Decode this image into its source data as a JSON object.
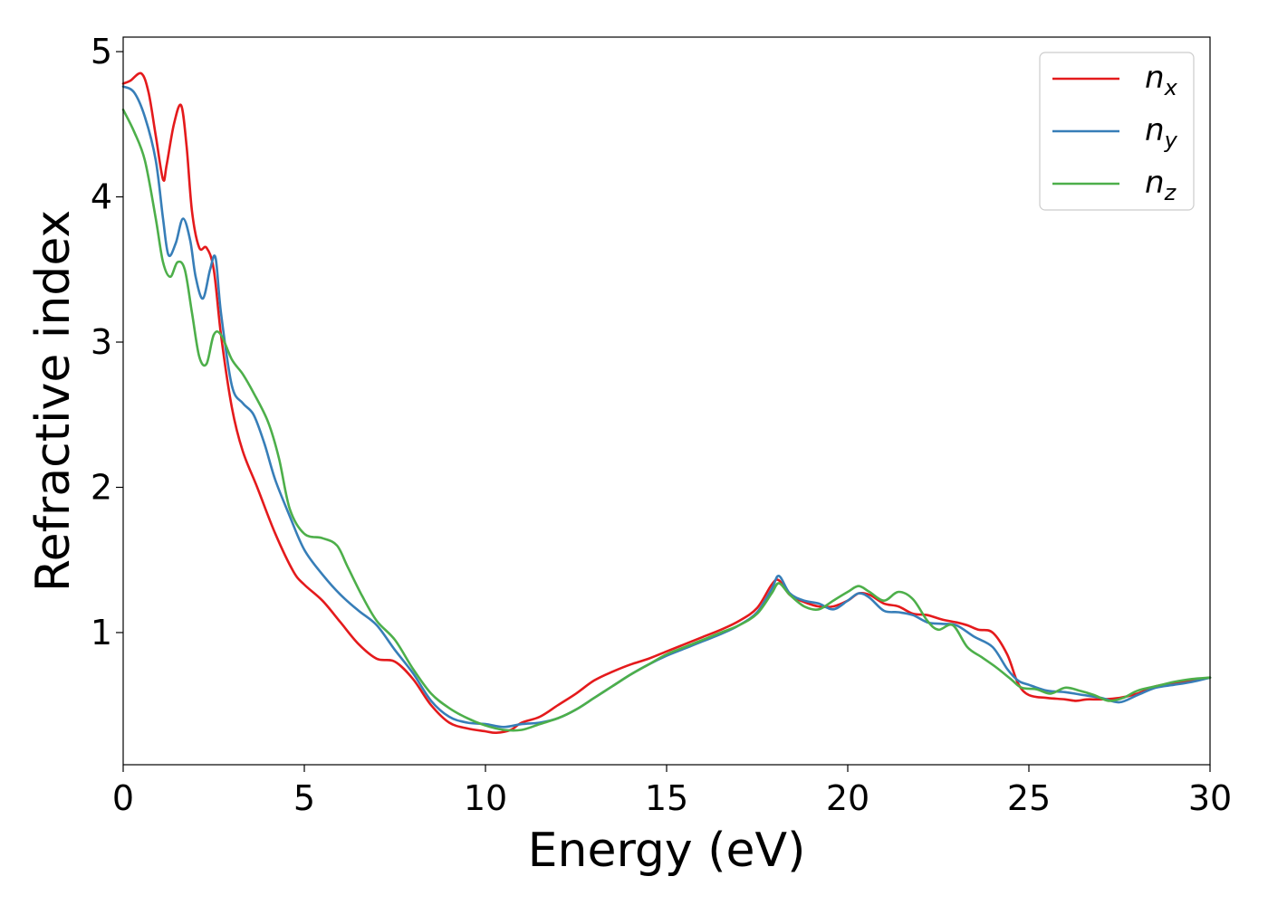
{
  "chart_data": {
    "type": "line",
    "title": "",
    "xlabel": "Energy (eV)",
    "ylabel": "Refractive index",
    "xlim": [
      0,
      30
    ],
    "ylim": [
      0.09,
      5.1
    ],
    "xticks": [
      0,
      5,
      10,
      15,
      20,
      25,
      30
    ],
    "yticks": [
      1,
      2,
      3,
      4,
      5
    ],
    "grid": false,
    "legend_position": "top-right",
    "series": [
      {
        "name": "n",
        "subscript": "x",
        "color": "#e41a1c",
        "x": [
          0,
          0.2,
          0.5,
          0.7,
          0.9,
          1.1,
          1.2,
          1.4,
          1.6,
          1.75,
          1.9,
          2.1,
          2.3,
          2.5,
          2.7,
          3.0,
          3.3,
          3.7,
          4.2,
          4.7,
          5.0,
          5.5,
          6.0,
          6.5,
          7.0,
          7.5,
          8.0,
          8.5,
          9.0,
          9.5,
          10.0,
          10.3,
          10.7,
          11.0,
          11.5,
          12.0,
          12.5,
          13.0,
          13.5,
          14.0,
          14.5,
          15.0,
          15.5,
          16.0,
          16.5,
          17.0,
          17.5,
          17.9,
          18.1,
          18.4,
          18.8,
          19.2,
          19.6,
          20.0,
          20.3,
          20.6,
          21.0,
          21.4,
          21.8,
          22.2,
          22.6,
          23.0,
          23.3,
          23.6,
          24.0,
          24.4,
          24.7,
          25.0,
          25.5,
          26.0,
          26.3,
          26.6,
          27.0,
          27.5,
          28.0,
          28.5,
          29.0,
          29.5,
          30.0
        ],
        "y": [
          4.78,
          4.8,
          4.85,
          4.72,
          4.42,
          4.12,
          4.22,
          4.5,
          4.63,
          4.35,
          3.9,
          3.65,
          3.65,
          3.5,
          3.05,
          2.55,
          2.25,
          2.0,
          1.68,
          1.42,
          1.33,
          1.22,
          1.07,
          0.92,
          0.82,
          0.8,
          0.68,
          0.5,
          0.38,
          0.34,
          0.32,
          0.31,
          0.33,
          0.38,
          0.42,
          0.5,
          0.58,
          0.67,
          0.73,
          0.78,
          0.82,
          0.87,
          0.92,
          0.97,
          1.02,
          1.08,
          1.17,
          1.33,
          1.36,
          1.26,
          1.21,
          1.18,
          1.18,
          1.22,
          1.27,
          1.26,
          1.2,
          1.18,
          1.13,
          1.12,
          1.09,
          1.07,
          1.05,
          1.02,
          1.0,
          0.85,
          0.65,
          0.57,
          0.55,
          0.54,
          0.53,
          0.54,
          0.54,
          0.55,
          0.58,
          0.63,
          0.65,
          0.67,
          0.69
        ]
      },
      {
        "name": "n",
        "subscript": "y",
        "color": "#377eb8",
        "x": [
          0,
          0.3,
          0.6,
          0.9,
          1.1,
          1.25,
          1.45,
          1.65,
          1.85,
          2.0,
          2.2,
          2.4,
          2.55,
          2.7,
          3.0,
          3.3,
          3.6,
          3.9,
          4.2,
          4.6,
          5.0,
          5.5,
          6.0,
          6.5,
          7.0,
          7.5,
          8.0,
          8.5,
          9.0,
          9.5,
          10.0,
          10.5,
          11.0,
          11.5,
          12.0,
          12.5,
          13.0,
          13.5,
          14.0,
          14.5,
          15.0,
          15.5,
          16.0,
          16.5,
          17.0,
          17.5,
          17.9,
          18.1,
          18.4,
          18.8,
          19.2,
          19.6,
          20.0,
          20.3,
          20.6,
          21.0,
          21.4,
          21.8,
          22.2,
          22.6,
          23.0,
          23.5,
          24.0,
          24.4,
          24.7,
          25.0,
          25.5,
          26.0,
          26.5,
          27.0,
          27.5,
          28.0,
          28.5,
          29.0,
          29.5,
          30.0
        ],
        "y": [
          4.76,
          4.72,
          4.55,
          4.25,
          3.85,
          3.6,
          3.68,
          3.85,
          3.7,
          3.45,
          3.3,
          3.5,
          3.58,
          3.2,
          2.7,
          2.58,
          2.5,
          2.3,
          2.05,
          1.8,
          1.57,
          1.4,
          1.26,
          1.15,
          1.05,
          0.88,
          0.72,
          0.53,
          0.42,
          0.38,
          0.37,
          0.35,
          0.37,
          0.38,
          0.41,
          0.47,
          0.55,
          0.63,
          0.71,
          0.78,
          0.84,
          0.89,
          0.94,
          0.99,
          1.05,
          1.14,
          1.3,
          1.39,
          1.27,
          1.22,
          1.2,
          1.16,
          1.22,
          1.27,
          1.24,
          1.15,
          1.14,
          1.12,
          1.07,
          1.06,
          1.05,
          0.97,
          0.9,
          0.75,
          0.67,
          0.64,
          0.6,
          0.59,
          0.57,
          0.55,
          0.52,
          0.57,
          0.62,
          0.64,
          0.66,
          0.69
        ]
      },
      {
        "name": "n",
        "subscript": "z",
        "color": "#4daf4a",
        "x": [
          0,
          0.3,
          0.6,
          0.9,
          1.1,
          1.3,
          1.5,
          1.7,
          1.9,
          2.1,
          2.3,
          2.5,
          2.7,
          3.0,
          3.3,
          3.6,
          4.0,
          4.3,
          4.6,
          5.0,
          5.5,
          5.9,
          6.2,
          6.6,
          7.0,
          7.5,
          8.0,
          8.5,
          9.0,
          9.5,
          10.0,
          10.5,
          11.0,
          11.5,
          12.0,
          12.5,
          13.0,
          13.5,
          14.0,
          14.5,
          15.0,
          15.5,
          16.0,
          16.5,
          17.0,
          17.5,
          17.9,
          18.1,
          18.4,
          18.8,
          19.2,
          19.6,
          20.0,
          20.3,
          20.6,
          21.0,
          21.4,
          21.8,
          22.2,
          22.5,
          22.9,
          23.3,
          23.7,
          24.1,
          24.5,
          24.8,
          25.2,
          25.6,
          26.0,
          26.4,
          26.8,
          27.2,
          27.6,
          28.0,
          28.5,
          29.0,
          29.5,
          30.0
        ],
        "y": [
          4.6,
          4.45,
          4.25,
          3.85,
          3.55,
          3.45,
          3.55,
          3.5,
          3.2,
          2.9,
          2.85,
          3.05,
          3.05,
          2.88,
          2.78,
          2.65,
          2.45,
          2.2,
          1.85,
          1.68,
          1.65,
          1.6,
          1.45,
          1.25,
          1.08,
          0.95,
          0.75,
          0.58,
          0.48,
          0.41,
          0.36,
          0.33,
          0.33,
          0.37,
          0.41,
          0.47,
          0.55,
          0.63,
          0.71,
          0.78,
          0.85,
          0.9,
          0.95,
          1.0,
          1.05,
          1.13,
          1.27,
          1.34,
          1.26,
          1.18,
          1.16,
          1.22,
          1.28,
          1.32,
          1.28,
          1.22,
          1.28,
          1.23,
          1.08,
          1.02,
          1.05,
          0.9,
          0.83,
          0.76,
          0.68,
          0.62,
          0.61,
          0.58,
          0.62,
          0.6,
          0.57,
          0.53,
          0.55,
          0.6,
          0.63,
          0.66,
          0.68,
          0.69
        ]
      }
    ]
  }
}
